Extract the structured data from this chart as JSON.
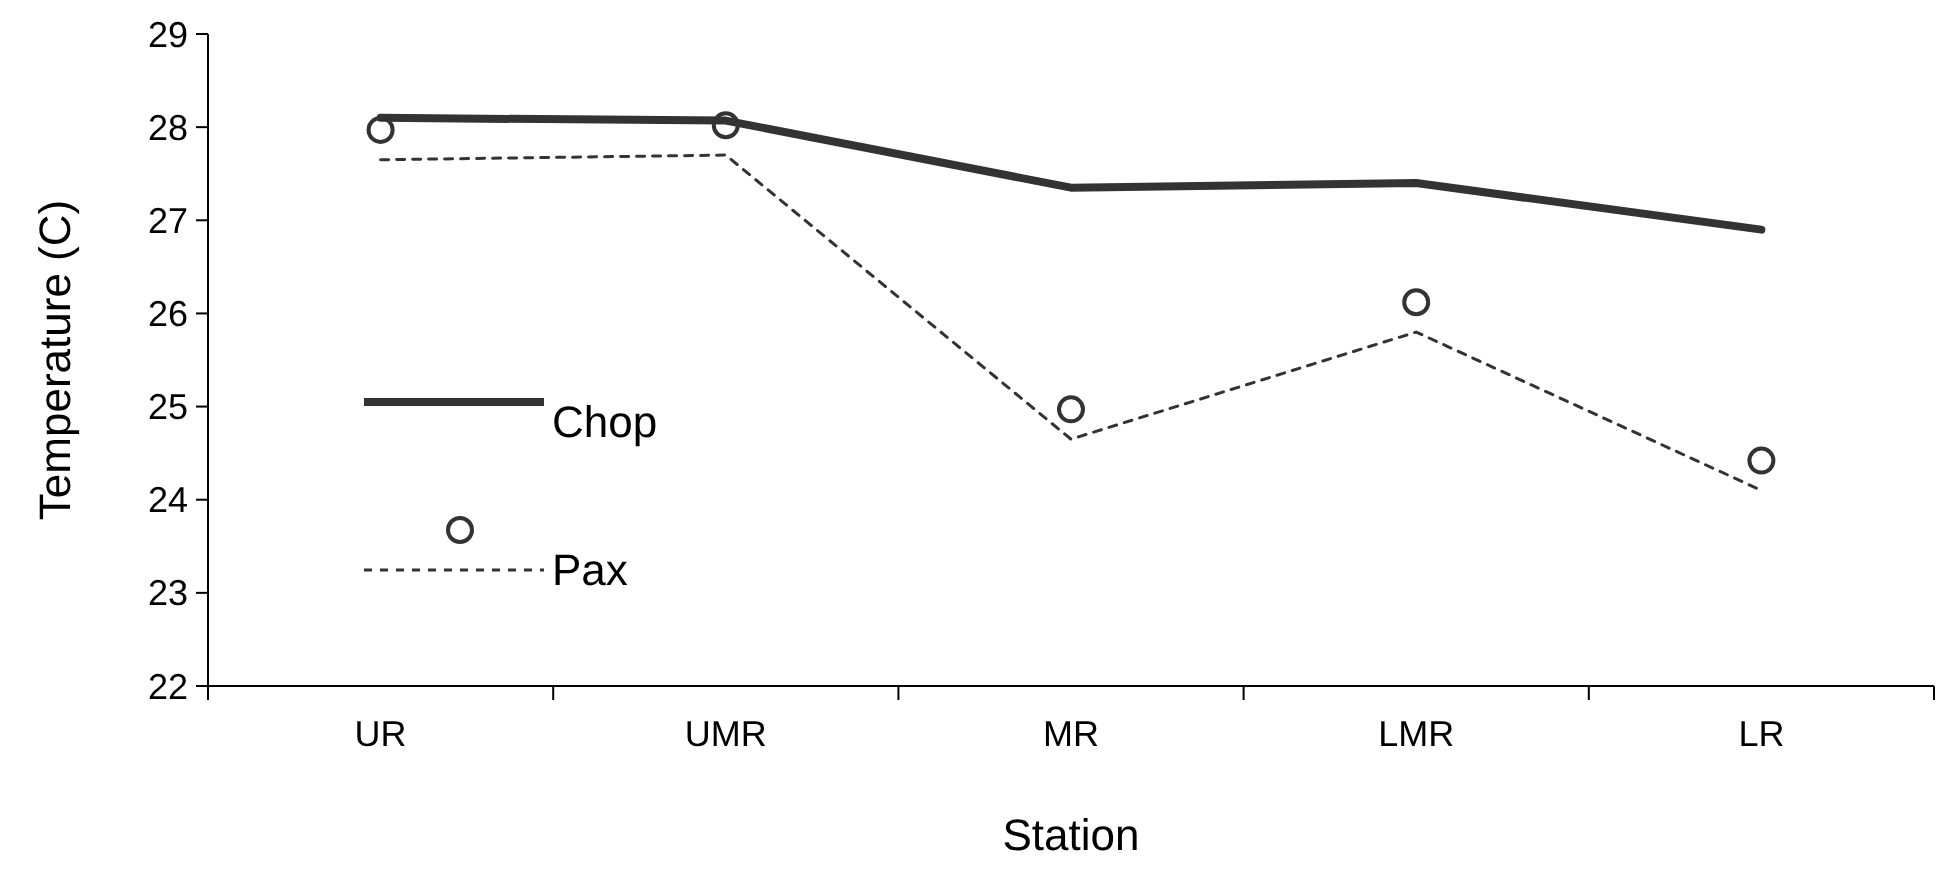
{
  "chart_data": {
    "type": "line",
    "xlabel": "Station",
    "ylabel": "Temperature (C)",
    "categories": [
      "UR",
      "UMR",
      "MR",
      "LMR",
      "LR"
    ],
    "ylim": [
      22,
      29
    ],
    "yticks": [
      22,
      23,
      24,
      25,
      26,
      27,
      28,
      29
    ],
    "legend": "left",
    "grid": false,
    "series": [
      {
        "name": "Chop",
        "color": "#333333",
        "line_style": "solid",
        "marker": "none",
        "values": [
          28.1,
          28.07,
          27.35,
          27.4,
          26.9
        ]
      },
      {
        "name": "Pax",
        "color": "#333333",
        "line_style": "dashed",
        "marker": "none",
        "values": [
          27.65,
          27.7,
          24.65,
          25.8,
          24.1
        ]
      },
      {
        "type": "scatter",
        "color": "#333333",
        "marker": "circle",
        "values": [
          27.97,
          28.02,
          24.97,
          26.12,
          24.42
        ]
      }
    ]
  }
}
